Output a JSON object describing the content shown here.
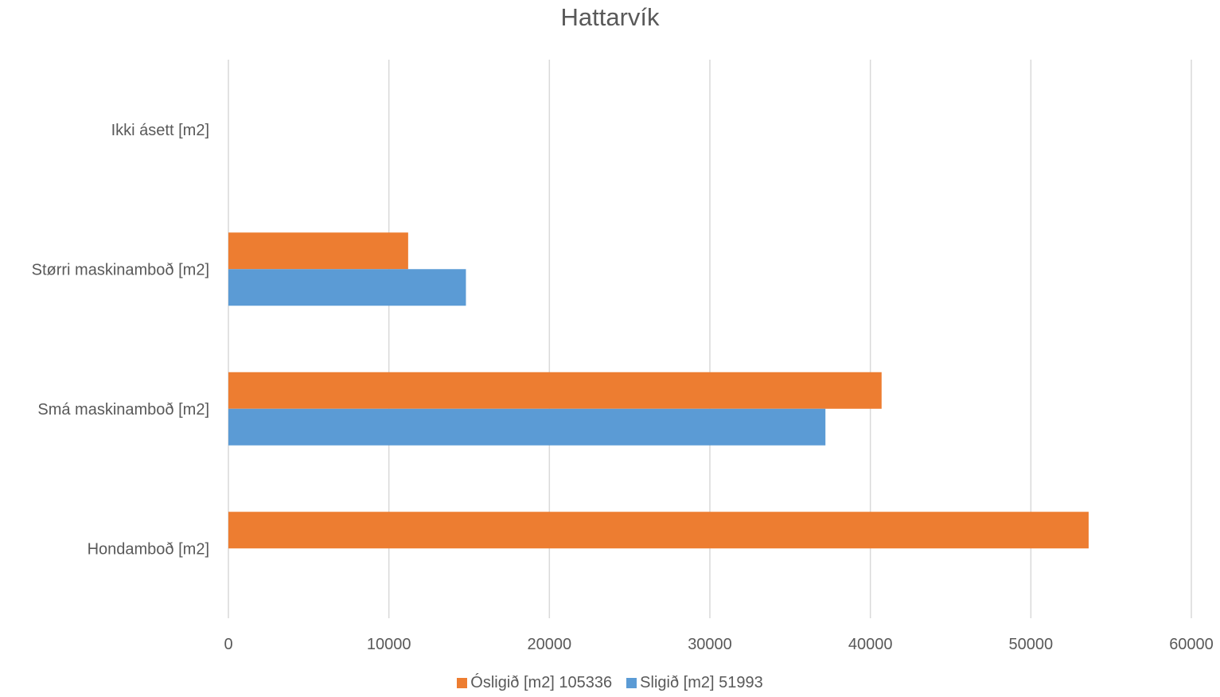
{
  "chart_data": {
    "type": "bar",
    "orientation": "horizontal",
    "title": "Hattarvík",
    "categories": [
      "Hondamboð [m2]",
      "Smá maskinamboð [m2]",
      "Størri maskinamboð [m2]",
      "Ikki ásett [m2]"
    ],
    "series": [
      {
        "name": "Óslig­ið [m2] 105336",
        "color": "#ED7D31",
        "values": [
          53600,
          40700,
          11200,
          0
        ]
      },
      {
        "name": "Sligið [m2] 51993",
        "color": "#5B9BD5",
        "values": [
          0,
          37200,
          14800,
          0
        ]
      }
    ],
    "xlim": [
      0,
      60000
    ],
    "xticks": [
      0,
      10000,
      20000,
      30000,
      40000,
      50000,
      60000
    ],
    "xlabel": "",
    "ylabel": "",
    "grid": true,
    "legend_position": "bottom"
  }
}
